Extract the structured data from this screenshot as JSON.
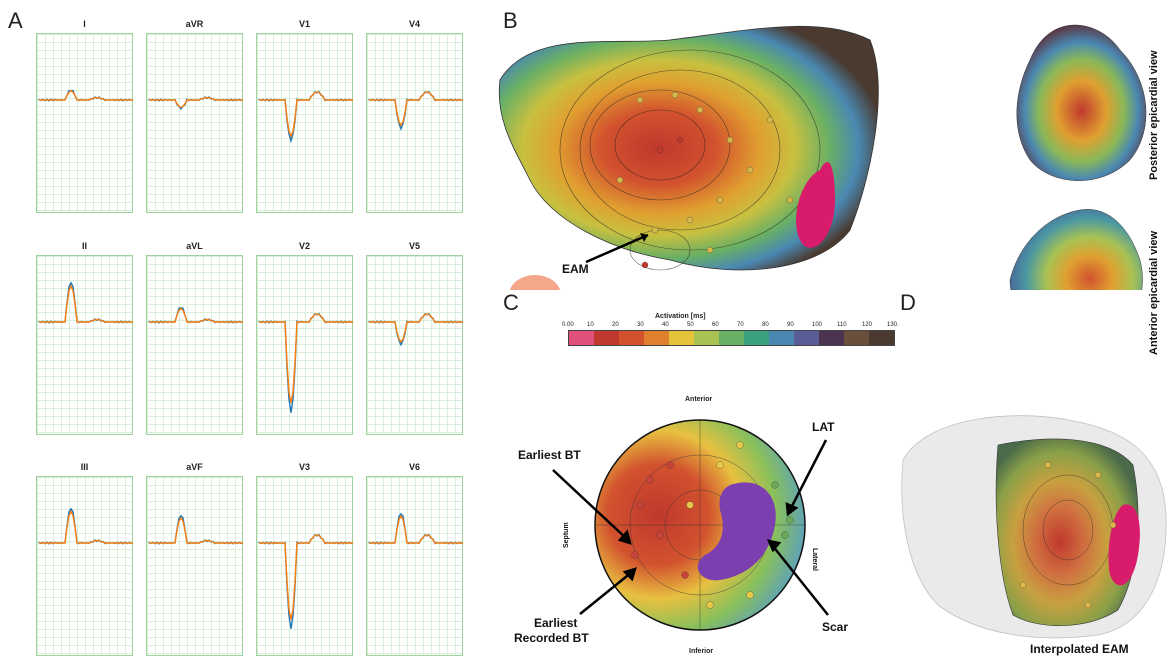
{
  "panels": {
    "a": "A",
    "b": "B",
    "c": "C",
    "d": "D"
  },
  "ecg": {
    "leads": [
      [
        "I",
        "aVR",
        "V1",
        "V4"
      ],
      [
        "II",
        "aVL",
        "V2",
        "V5"
      ],
      [
        "III",
        "aVF",
        "V3",
        "V6"
      ]
    ],
    "colors": {
      "measured": "#1f77b4",
      "simulated": "#ff7f0e",
      "grid": "#9ed39e"
    }
  },
  "panel_b": {
    "eam_label": "EAM",
    "posterior_label": "Posterior epicardial view",
    "anterior_label": "Anterior epicardial view",
    "colorbar": {
      "title": "Activation [ms]",
      "ticks": [
        "0.00",
        "10",
        "20",
        "30",
        "40",
        "50",
        "60",
        "70",
        "80",
        "90",
        "100",
        "110",
        "120",
        "130."
      ],
      "colors": [
        "#e0507a",
        "#c0382e",
        "#d2522e",
        "#e0802e",
        "#e4c23a",
        "#a8c254",
        "#6ab064",
        "#3aa07e",
        "#4a88b2",
        "#5a5c96",
        "#4a3450",
        "#6a503c",
        "#4a3a30"
      ]
    }
  },
  "panel_c": {
    "anterior": "Anterior",
    "inferior": "Inferior",
    "septum": "Septum",
    "lateral": "Lateral",
    "earliest_bt": "Earliest BT",
    "earliest_recorded_bt_1": "Earliest",
    "earliest_recorded_bt_2": "Recorded BT",
    "lat": "LAT",
    "scar": "Scar"
  },
  "panel_d": {
    "label": "Interpolated EAM"
  }
}
